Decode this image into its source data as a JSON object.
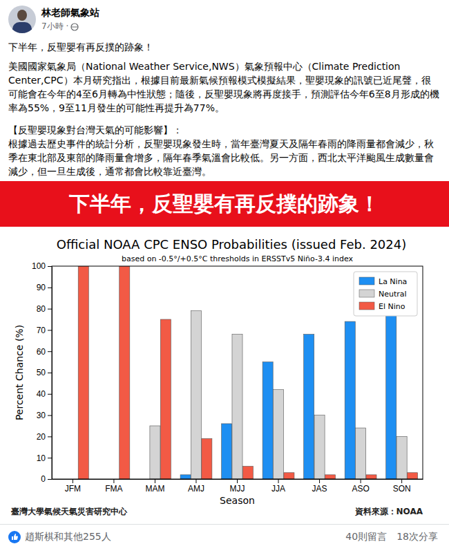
{
  "post": {
    "author": "林老師氣象站",
    "time": "7小時 ·",
    "headline": "下半年，反聖嬰有再反撲的跡象！",
    "paragraph1": "美國國家氣象局（National Weather Service,NWS）氣象預報中心（Climate Prediction Center,CPC）本月研究指出，根據目前最新氣候預報模式模擬結果，聖嬰現象的訊號已近尾聲，很可能會在今年的4至6月轉為中性狀態；隨後，反聖嬰現象將再度接手，預測評估今年6至8月形成的機率為55%，9至11月發生的可能性再提升為77%。",
    "section_title": "【反聖嬰現象對台灣天氣的可能影響】：",
    "paragraph2": "根據過去歷史事件的統計分析，反聖嬰現象發生時，當年臺灣夏天及隔年春雨的降雨量都會減少，秋季在東北部及東部的降雨量會增多，隔年春季氣溫會比較低。另一方面，西北太平洋颱風生成數量會減少，但一旦生成後，通常都會比較靠近臺灣。",
    "banner": "下半年，反聖嬰有再反撲的跡象！",
    "footer_left": "臺灣大學氣候天氣災害研究中心",
    "footer_right": "資料來源：NOAA",
    "reactions": "趙斯棋和其他255人",
    "comments": "40則留言",
    "shares": "18次分享"
  },
  "chart_data": {
    "type": "bar",
    "title": "Official NOAA CPC ENSO Probabilities (issued Feb. 2024)",
    "subtitle": "based on -0.5°/+0.5°C thresholds in ERSSTv5 Niño-3.4 index",
    "x_label": "Season",
    "y_label": "Percent Chance (%)",
    "categories": [
      "JFM",
      "FMA",
      "MAM",
      "AMJ",
      "MJJ",
      "JJA",
      "JAS",
      "ASO",
      "SON"
    ],
    "series": [
      {
        "name": "La Nina",
        "color": "#1e8ff2",
        "values": [
          0,
          0,
          0,
          2,
          26,
          55,
          68,
          74,
          77
        ]
      },
      {
        "name": "Neutral",
        "color": "#d4d4d4",
        "values": [
          0,
          0,
          25,
          79,
          68,
          42,
          30,
          24,
          20
        ]
      },
      {
        "name": "El Nino",
        "color": "#f25a45",
        "values": [
          100,
          100,
          75,
          19,
          6,
          3,
          2,
          2,
          3
        ]
      }
    ],
    "ylim": [
      0,
      100
    ],
    "yticks": [
      0,
      10,
      20,
      30,
      40,
      50,
      60,
      70,
      80,
      90,
      100
    ],
    "grid": false,
    "legend": "upper right"
  }
}
